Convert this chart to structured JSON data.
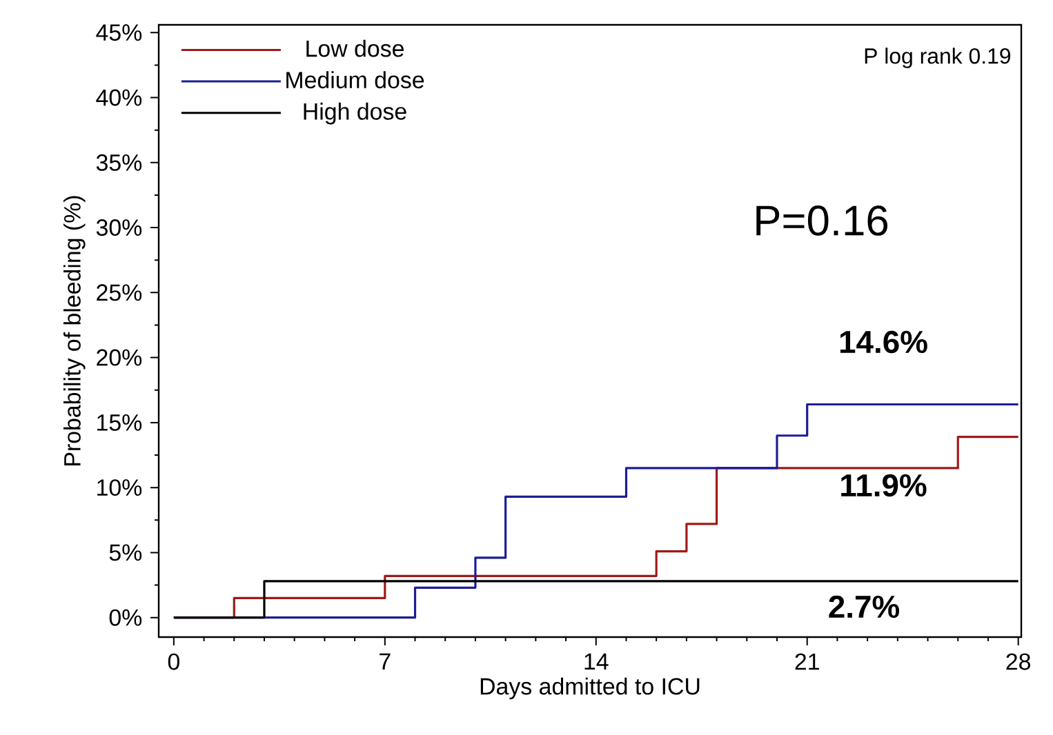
{
  "chart_data": {
    "type": "step",
    "xlabel": "Days admitted to ICU",
    "ylabel": "Probability of bleeding (%)",
    "xlim": [
      -0.5,
      28.1
    ],
    "ylim": [
      -1.5,
      45.6
    ],
    "xticks": [
      0,
      7,
      14,
      21,
      28
    ],
    "yticks": [
      {
        "value": 0,
        "label": "0%"
      },
      {
        "value": 5,
        "label": "5%"
      },
      {
        "value": 10,
        "label": "10%"
      },
      {
        "value": 15,
        "label": "15%"
      },
      {
        "value": 20,
        "label": "20%"
      },
      {
        "value": 25,
        "label": "25%"
      },
      {
        "value": 30,
        "label": "30%"
      },
      {
        "value": 35,
        "label": "35%"
      },
      {
        "value": 40,
        "label": "40%"
      },
      {
        "value": 45,
        "label": "45%"
      }
    ],
    "series": [
      {
        "name": "Low dose",
        "color": "#9e1a1a",
        "x": [
          0,
          2,
          7,
          16,
          17,
          18,
          26,
          28
        ],
        "values": [
          0,
          1.5,
          3.2,
          5.1,
          7.2,
          11.5,
          13.9,
          13.9
        ]
      },
      {
        "name": "Medium dose",
        "color": "#1c1c96",
        "x": [
          0,
          8,
          10,
          11,
          15,
          20,
          21,
          28
        ],
        "values": [
          0,
          2.3,
          4.6,
          9.3,
          11.5,
          14.0,
          16.4,
          16.4
        ]
      },
      {
        "name": "High dose",
        "color": "#000000",
        "x": [
          0,
          3,
          28
        ],
        "values": [
          0,
          2.8,
          2.8
        ]
      }
    ],
    "annotations": [
      "P log rank 0.19",
      "P=0.16",
      "14.6%",
      "11.9%",
      "2.7%"
    ],
    "legend": "top left",
    "grid": false,
    "marker": "none",
    "line_style": "solid"
  }
}
